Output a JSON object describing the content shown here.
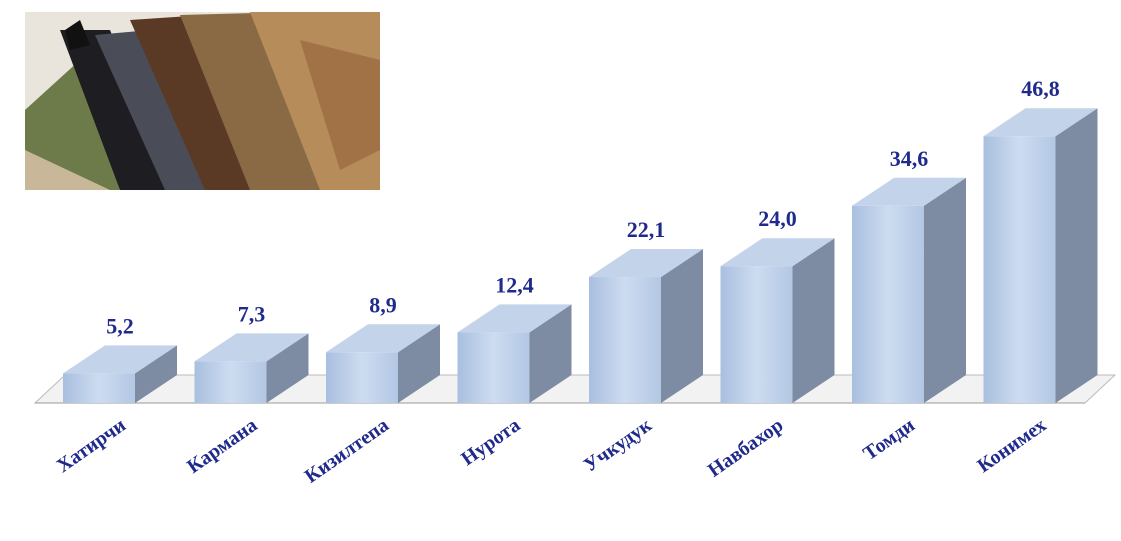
{
  "chart_data": {
    "type": "bar3d",
    "categories": [
      "Хатирчи",
      "Кармана",
      "Кизилтепа",
      "Нурота",
      "Учкудук",
      "Навбахор",
      "Томди",
      "Конимех"
    ],
    "values": [
      5.2,
      7.3,
      8.9,
      12.4,
      22.1,
      24.0,
      34.6,
      46.8
    ],
    "value_labels": [
      "5,2",
      "7,3",
      "8,9",
      "12,4",
      "22,1",
      "24,0",
      "34,6",
      "46,8"
    ],
    "color": "#b9cde8"
  }
}
